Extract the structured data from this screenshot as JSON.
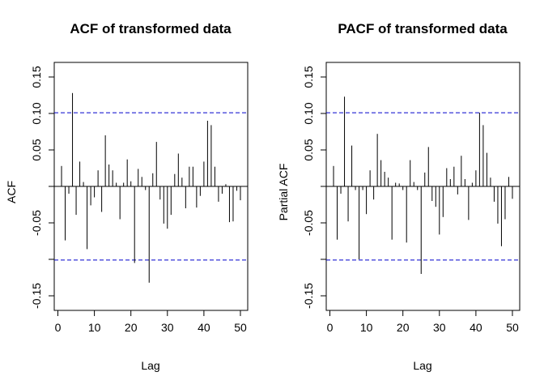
{
  "chart_data": [
    {
      "type": "bar",
      "title": "ACF of transformed data",
      "xlabel": "Lag",
      "ylabel": "ACF",
      "xlim": [
        -1,
        52
      ],
      "ylim": [
        -0.17,
        0.17
      ],
      "x_ticks": [
        0,
        10,
        20,
        30,
        40,
        50
      ],
      "y_ticks": [
        -0.15,
        -0.1,
        -0.05,
        0.0,
        0.05,
        0.1,
        0.15
      ],
      "y_tick_labels": [
        "-0.15",
        "",
        "-0.05",
        "",
        "0.05",
        "0.10",
        "0.15"
      ],
      "confidence_band": 0.101,
      "band_color": "#0000cc",
      "grid": false,
      "lags": [
        1,
        2,
        3,
        4,
        5,
        6,
        7,
        8,
        9,
        10,
        11,
        12,
        13,
        14,
        15,
        16,
        17,
        18,
        19,
        20,
        21,
        22,
        23,
        24,
        25,
        26,
        27,
        28,
        29,
        30,
        31,
        32,
        33,
        34,
        35,
        36,
        37,
        38,
        39,
        40,
        41,
        42,
        43,
        44,
        45,
        46,
        47,
        48,
        49,
        50
      ],
      "values": [
        0.028,
        -0.074,
        -0.01,
        0.128,
        -0.039,
        0.034,
        0.006,
        -0.086,
        -0.026,
        -0.015,
        0.022,
        -0.035,
        0.07,
        0.03,
        0.022,
        0.005,
        -0.045,
        0.005,
        0.037,
        0.007,
        -0.105,
        0.024,
        0.013,
        -0.005,
        -0.132,
        0.018,
        0.061,
        -0.018,
        -0.051,
        -0.058,
        -0.039,
        0.017,
        0.045,
        0.012,
        -0.03,
        0.027,
        0.027,
        -0.029,
        -0.013,
        0.034,
        0.09,
        0.084,
        0.027,
        -0.021,
        -0.01,
        0.003,
        -0.049,
        -0.048,
        -0.006,
        -0.019
      ]
    },
    {
      "type": "bar",
      "title": "PACF of transformed data",
      "xlabel": "Lag",
      "ylabel": "Partial ACF",
      "xlim": [
        -1,
        52
      ],
      "ylim": [
        -0.17,
        0.17
      ],
      "x_ticks": [
        0,
        10,
        20,
        30,
        40,
        50
      ],
      "y_ticks": [
        -0.15,
        -0.1,
        -0.05,
        0.0,
        0.05,
        0.1,
        0.15
      ],
      "y_tick_labels": [
        "-0.15",
        "",
        "-0.05",
        "",
        "0.05",
        "0.10",
        "0.15"
      ],
      "confidence_band": 0.101,
      "band_color": "#0000cc",
      "grid": false,
      "lags": [
        1,
        2,
        3,
        4,
        5,
        6,
        7,
        8,
        9,
        10,
        11,
        12,
        13,
        14,
        15,
        16,
        17,
        18,
        19,
        20,
        21,
        22,
        23,
        24,
        25,
        26,
        27,
        28,
        29,
        30,
        31,
        32,
        33,
        34,
        35,
        36,
        37,
        38,
        39,
        40,
        41,
        42,
        43,
        44,
        45,
        46,
        47,
        48,
        49,
        50
      ],
      "values": [
        0.028,
        -0.073,
        -0.01,
        0.123,
        -0.048,
        0.056,
        -0.005,
        -0.1,
        -0.005,
        -0.038,
        0.022,
        -0.018,
        0.072,
        0.036,
        0.02,
        0.012,
        -0.073,
        0.005,
        0.004,
        -0.005,
        -0.077,
        0.036,
        0.006,
        -0.005,
        -0.12,
        0.019,
        0.054,
        -0.02,
        -0.028,
        -0.066,
        -0.042,
        0.025,
        0.01,
        0.027,
        -0.011,
        0.042,
        0.01,
        -0.046,
        0.005,
        0.022,
        0.101,
        0.084,
        0.046,
        0.012,
        -0.021,
        -0.051,
        -0.082,
        -0.045,
        0.013,
        -0.017
      ]
    }
  ]
}
